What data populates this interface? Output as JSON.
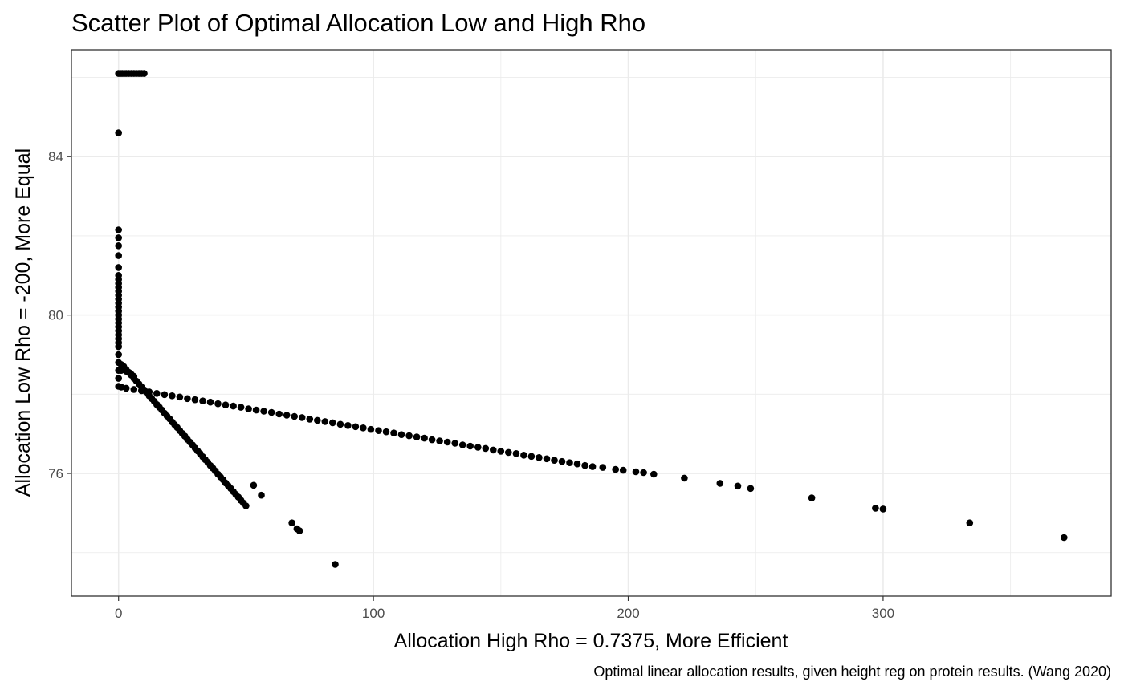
{
  "chart_data": {
    "type": "scatter",
    "title": "Scatter Plot of Optimal Allocation Low and High Rho",
    "xlabel": "Allocation High Rho = 0.7375, More Efficient",
    "ylabel": "Allocation Low Rho = -200, More Equal",
    "caption": "Optimal linear allocation results, given height reg on protein results. (Wang 2020)",
    "xlim": [
      -18.5,
      389.5
    ],
    "ylim": [
      72.9,
      86.7
    ],
    "x_ticks": [
      0,
      100,
      200,
      300
    ],
    "x_tick_labels": [
      "0",
      "100",
      "200",
      "300"
    ],
    "y_ticks": [
      76,
      80,
      84
    ],
    "y_tick_labels": [
      "76",
      "80",
      "84"
    ],
    "x_minor": [
      50,
      150,
      250,
      350
    ],
    "y_minor": [
      74,
      78,
      82,
      86
    ],
    "grid": true,
    "legend": "none",
    "point_color": "#000000",
    "series": [
      {
        "x": [
          0,
          0.7,
          1.4,
          2.2,
          3.0,
          4.0,
          5.0,
          6.0,
          7.0,
          8.0,
          9.0,
          10.0,
          0,
          0,
          0,
          0,
          0,
          0,
          0,
          0,
          0,
          0,
          0,
          0,
          0,
          0,
          0,
          0,
          0,
          0,
          0,
          0,
          0,
          0,
          0,
          0,
          0,
          0,
          0,
          0,
          0,
          0,
          1,
          2,
          3,
          4,
          5,
          6,
          7,
          8,
          9,
          10,
          11,
          12,
          13,
          14,
          15,
          16,
          17,
          18,
          19,
          20,
          21,
          22,
          23,
          24,
          25,
          26,
          27,
          28,
          29,
          30,
          31,
          32,
          33,
          34,
          35,
          36,
          37,
          38,
          39,
          40,
          41,
          42,
          43,
          44,
          45,
          46,
          47,
          48,
          49,
          50,
          53,
          56,
          68,
          70,
          71,
          85,
          1,
          3,
          6,
          9,
          12,
          15,
          18,
          21,
          24,
          27,
          30,
          33,
          36,
          39,
          42,
          45,
          48,
          51,
          54,
          57,
          60,
          63,
          66,
          69,
          72,
          75,
          78,
          81,
          84,
          87,
          90,
          93,
          96,
          99,
          102,
          105,
          108,
          111,
          114,
          117,
          120,
          123,
          126,
          129,
          132,
          135,
          138,
          141,
          144,
          147,
          150,
          153,
          156,
          159,
          162,
          165,
          168,
          171,
          174,
          177,
          180,
          183,
          186,
          190,
          195,
          198,
          203,
          206,
          210,
          222,
          236,
          243,
          248,
          272,
          297,
          300,
          334,
          371,
          1,
          2,
          3,
          4,
          5,
          6
        ],
        "y": [
          86.1,
          86.1,
          86.1,
          86.1,
          86.1,
          86.1,
          86.1,
          86.1,
          86.1,
          86.1,
          86.1,
          86.1,
          84.6,
          82.15,
          81.95,
          81.75,
          81.5,
          81.2,
          81.0,
          80.8,
          80.6,
          80.4,
          80.2,
          80.0,
          79.8,
          79.6,
          79.4,
          79.2,
          79.0,
          78.8,
          78.6,
          78.4,
          78.2,
          80.9,
          80.7,
          80.5,
          80.3,
          80.1,
          79.9,
          79.7,
          79.5,
          79.3,
          78.75,
          78.7,
          78.62,
          78.55,
          78.48,
          78.4,
          78.33,
          78.26,
          78.18,
          78.11,
          78.04,
          77.96,
          77.89,
          77.82,
          77.74,
          77.67,
          77.6,
          77.52,
          77.45,
          77.38,
          77.3,
          77.23,
          77.16,
          77.08,
          77.01,
          76.94,
          76.86,
          76.79,
          76.72,
          76.64,
          76.57,
          76.5,
          76.42,
          76.35,
          76.28,
          76.2,
          76.13,
          76.06,
          75.98,
          75.91,
          75.84,
          75.76,
          75.69,
          75.62,
          75.54,
          75.47,
          75.4,
          75.32,
          75.25,
          75.18,
          75.7,
          75.45,
          74.75,
          74.6,
          74.55,
          73.7,
          78.18,
          78.15,
          78.12,
          78.09,
          78.06,
          78.02,
          77.99,
          77.96,
          77.93,
          77.89,
          77.86,
          77.83,
          77.8,
          77.76,
          77.73,
          77.7,
          77.67,
          77.63,
          77.6,
          77.57,
          77.54,
          77.5,
          77.47,
          77.44,
          77.41,
          77.37,
          77.34,
          77.31,
          77.28,
          77.24,
          77.21,
          77.18,
          77.15,
          77.11,
          77.08,
          77.05,
          77.02,
          76.98,
          76.95,
          76.92,
          76.89,
          76.85,
          76.82,
          76.79,
          76.76,
          76.72,
          76.69,
          76.66,
          76.63,
          76.59,
          76.56,
          76.53,
          76.5,
          76.46,
          76.43,
          76.4,
          76.37,
          76.33,
          76.3,
          76.27,
          76.24,
          76.2,
          76.17,
          76.15,
          76.1,
          76.08,
          76.04,
          76.02,
          75.98,
          75.88,
          75.75,
          75.68,
          75.62,
          75.38,
          75.12,
          75.1,
          74.75,
          74.38,
          78.6,
          78.62,
          78.58,
          78.55,
          78.5,
          78.45
        ]
      }
    ]
  }
}
